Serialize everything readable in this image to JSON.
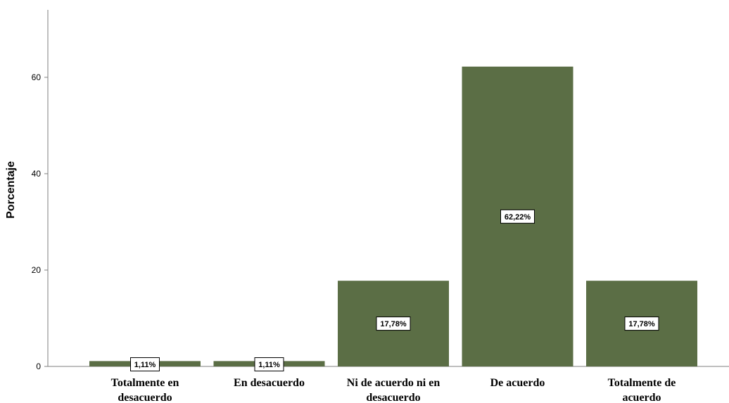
{
  "chart_data": {
    "type": "bar",
    "title": "",
    "xlabel": "",
    "ylabel": "Porcentaje",
    "ylim": [
      0,
      74
    ],
    "yticks": [
      0,
      20,
      40,
      60
    ],
    "grid": false,
    "legend": "none",
    "categories": [
      [
        "Totalmente en",
        "desacuerdo"
      ],
      [
        "En desacuerdo"
      ],
      [
        "Ni de acuerdo ni en",
        "desacuerdo"
      ],
      [
        "De acuerdo"
      ],
      [
        "Totalmente de",
        "acuerdo"
      ]
    ],
    "values": [
      1.11,
      1.11,
      17.78,
      62.22,
      17.78
    ],
    "data_labels": [
      "1,11%",
      "1,11%",
      "17,78%",
      "62,22%",
      "17,78%"
    ],
    "colors": {
      "bar": "#5b6e45",
      "axis": "#7f7f7f"
    }
  }
}
